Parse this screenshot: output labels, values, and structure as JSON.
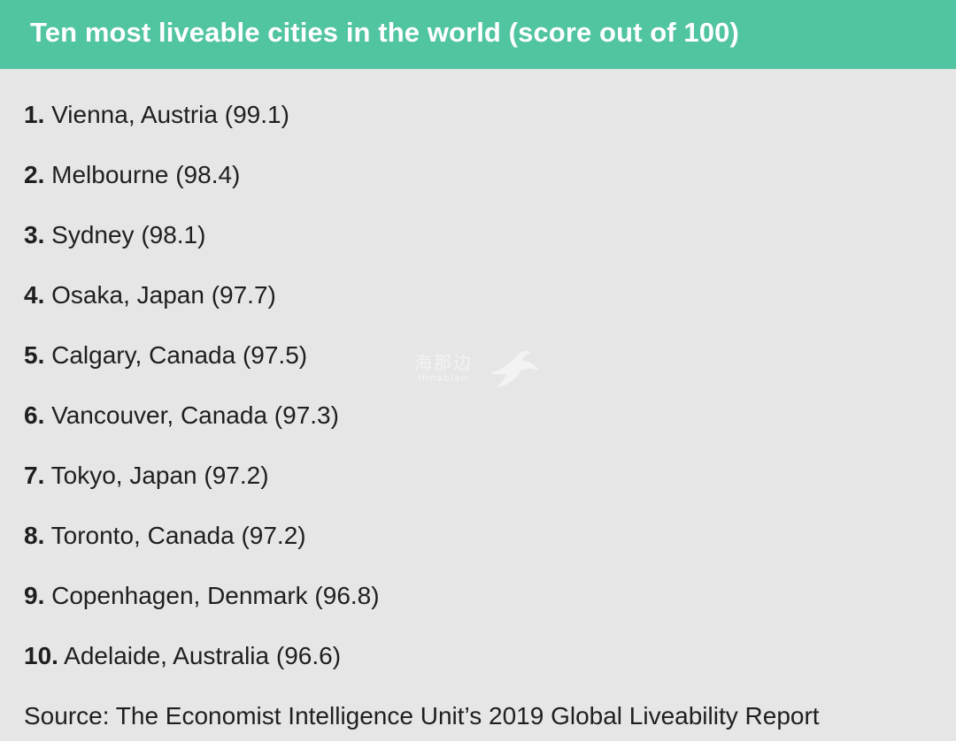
{
  "header": {
    "title": "Ten most liveable cities in the world (score out of 100)"
  },
  "list": {
    "items": [
      {
        "rank": "1.",
        "text": "Vienna, Austria (99.1)"
      },
      {
        "rank": "2.",
        "text": "Melbourne (98.4)"
      },
      {
        "rank": "3.",
        "text": "Sydney (98.1)"
      },
      {
        "rank": "4.",
        "text": "Osaka, Japan (97.7)"
      },
      {
        "rank": "5.",
        "text": "Calgary, Canada (97.5)"
      },
      {
        "rank": "6.",
        "text": "Vancouver, Canada (97.3)"
      },
      {
        "rank": "7.",
        "text": "Tokyo, Japan (97.2)"
      },
      {
        "rank": "8.",
        "text": "Toronto, Canada (97.2)"
      },
      {
        "rank": "9.",
        "text": "Copenhagen, Denmark (96.8)"
      },
      {
        "rank": "10.",
        "text": "Adelaide, Australia (96.6)"
      }
    ]
  },
  "source": {
    "text": "Source: The Economist Intelligence Unit’s 2019 Global Liveability Report"
  },
  "watermark": {
    "text": "海那边",
    "subtext": "Hinabian",
    "icon": "bird-logo-icon"
  },
  "colors": {
    "header_bg": "#51c4a1",
    "page_bg": "#e6e6e6",
    "text": "#1f1f1f"
  }
}
